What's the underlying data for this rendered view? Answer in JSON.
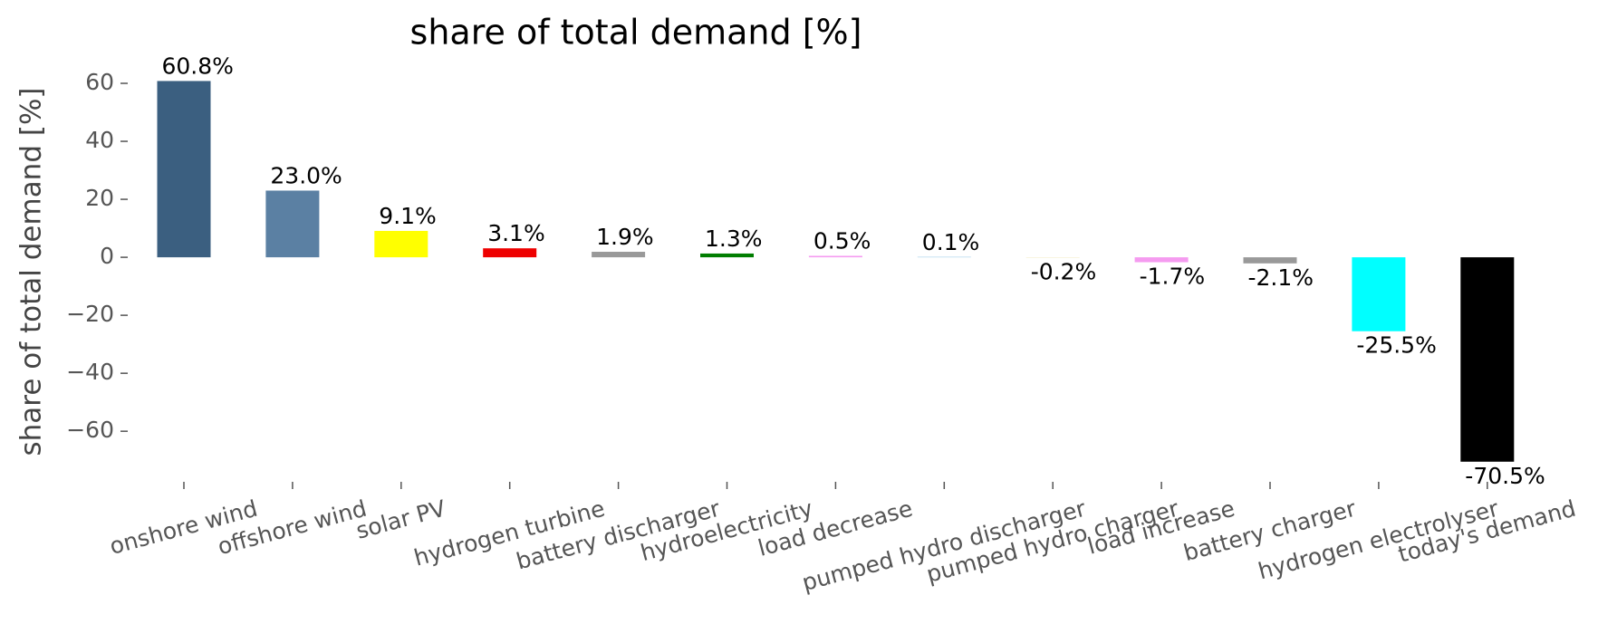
{
  "chart_data": {
    "type": "bar",
    "title": "share of total demand [%]",
    "y_label": "share of total demand [%]",
    "categories": [
      "onshore wind",
      "offshore wind",
      "solar PV",
      "hydrogen turbine",
      "battery discharger",
      "hydroelectricity",
      "load decrease",
      "pumped hydro discharger",
      "pumped hydro charger",
      "load increase",
      "battery charger",
      "hydrogen electrolyser",
      "today's demand"
    ],
    "values": [
      60.8,
      23.0,
      9.1,
      3.1,
      1.9,
      1.3,
      0.5,
      0.1,
      -0.2,
      -1.7,
      -2.1,
      -25.5,
      -70.5
    ],
    "value_labels": [
      "60.8%",
      "23.0%",
      "9.1%",
      "3.1%",
      "1.9%",
      "1.3%",
      "0.5%",
      "0.1%",
      "-0.2%",
      "-1.7%",
      "-2.1%",
      "-25.5%",
      "-70.5%"
    ],
    "colors": [
      "#3b5f80",
      "#5b80a3",
      "#ffff00",
      "#ee0000",
      "#999999",
      "#007d00",
      "#f59bf0",
      "#51a8d6",
      "#f5f0d0",
      "#f59bf0",
      "#999999",
      "#00ffff",
      "#000000"
    ],
    "ylim": [
      -79,
      70
    ],
    "yticks": [
      {
        "value": -60,
        "label": "−60"
      },
      {
        "value": -40,
        "label": "−40"
      },
      {
        "value": -20,
        "label": "−20"
      },
      0,
      20,
      40,
      60
    ],
    "grid": false
  }
}
